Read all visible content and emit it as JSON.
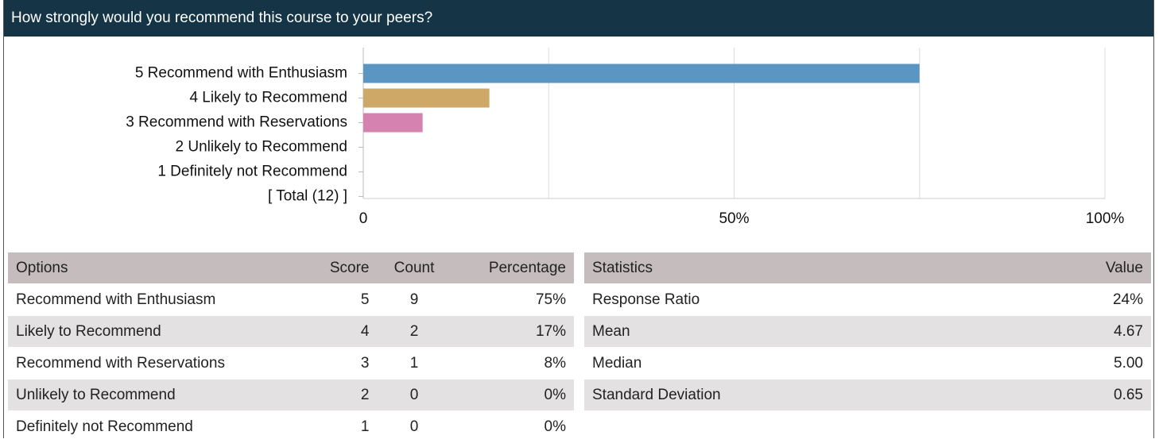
{
  "header": {
    "title": "How strongly would you recommend this course to your peers?"
  },
  "chart_data": {
    "type": "bar",
    "orientation": "horizontal",
    "categories": [
      "5 Recommend with Enthusiasm",
      "4 Likely to Recommend",
      "3 Recommend with Reservations",
      "2 Unlikely to Recommend",
      "1 Definitely not Recommend",
      "[ Total (12) ]"
    ],
    "values": [
      75,
      17,
      8,
      0,
      0,
      null
    ],
    "colors": [
      "#5b96c2",
      "#cda867",
      "#d582b0"
    ],
    "xlim": [
      0,
      100
    ],
    "xticks": [
      0,
      {
        "value": 50,
        "label": "50%"
      },
      {
        "value": 100,
        "label": "100%"
      }
    ],
    "gridlines": [
      0,
      25,
      50,
      75,
      100
    ]
  },
  "options_table": {
    "header": [
      "Options",
      "Score",
      "Count",
      "Percentage"
    ],
    "rows": [
      [
        "Recommend with Enthusiasm",
        "5",
        "9",
        "75%"
      ],
      [
        "Likely to Recommend",
        "4",
        "2",
        "17%"
      ],
      [
        "Recommend with Reservations",
        "3",
        "1",
        "8%"
      ],
      [
        "Unlikely to Recommend",
        "2",
        "0",
        "0%"
      ],
      [
        "Definitely not Recommend",
        "1",
        "0",
        "0%"
      ]
    ]
  },
  "statistics_table": {
    "header": [
      "Statistics",
      "Value"
    ],
    "rows": [
      [
        "Response Ratio",
        "24%"
      ],
      [
        "Mean",
        "4.67"
      ],
      [
        "Median",
        "5.00"
      ],
      [
        "Standard Deviation",
        "0.65"
      ]
    ]
  }
}
